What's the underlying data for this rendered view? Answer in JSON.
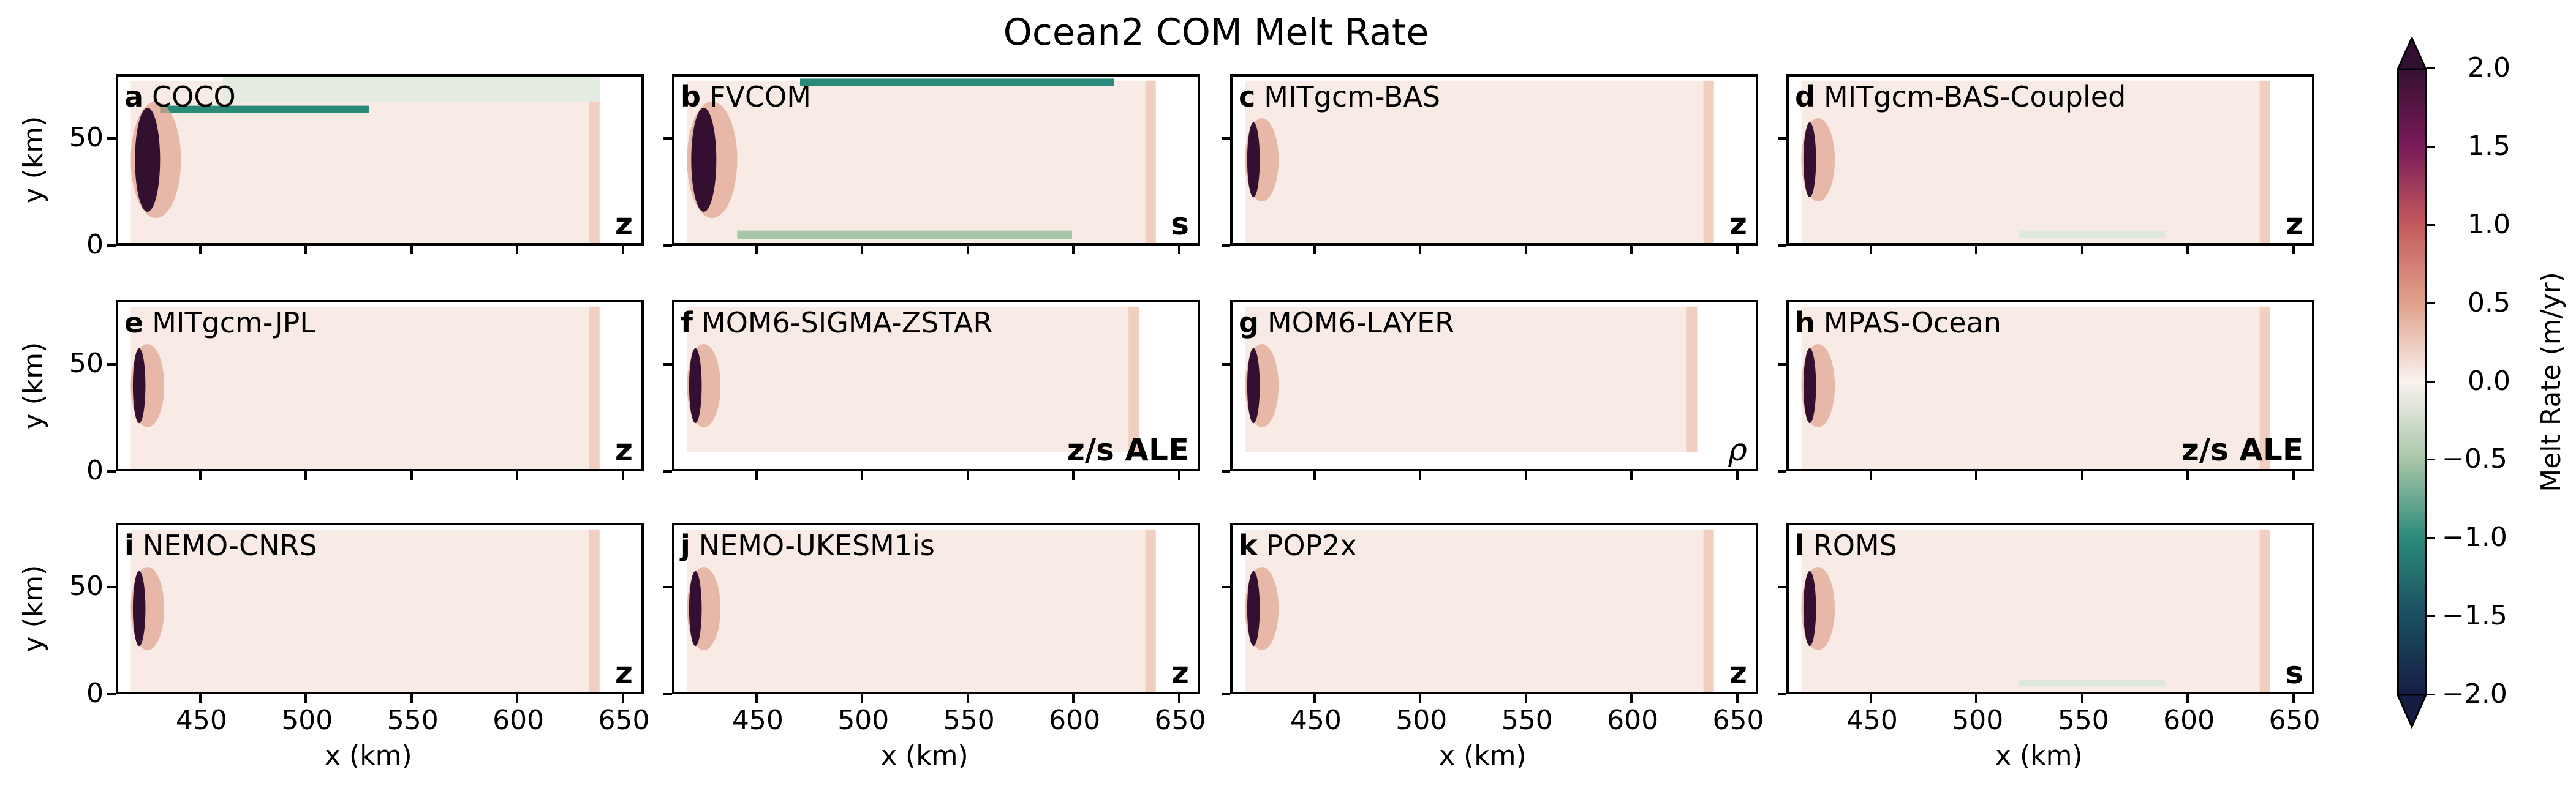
{
  "chart_data": {
    "type": "heatmap",
    "title": "Ocean2 COM Melt Rate",
    "xlabel": "x (km)",
    "ylabel": "y (km)",
    "xlim": [
      410,
      660
    ],
    "ylim": [
      0,
      80
    ],
    "xticks": [
      "450",
      "500",
      "550",
      "600",
      "650"
    ],
    "yticks": [
      "0",
      "50"
    ],
    "panels": [
      {
        "letter": "a",
        "name": "COCO",
        "coord": "z"
      },
      {
        "letter": "b",
        "name": "FVCOM",
        "coord": "s"
      },
      {
        "letter": "c",
        "name": "MITgcm-BAS",
        "coord": "z"
      },
      {
        "letter": "d",
        "name": "MITgcm-BAS-Coupled",
        "coord": "z"
      },
      {
        "letter": "e",
        "name": "MITgcm-JPL",
        "coord": "z"
      },
      {
        "letter": "f",
        "name": "MOM6-SIGMA-ZSTAR",
        "coord": "z/s ALE"
      },
      {
        "letter": "g",
        "name": "MOM6-LAYER",
        "coord": "ρ"
      },
      {
        "letter": "h",
        "name": "MPAS-Ocean",
        "coord": "z/s ALE"
      },
      {
        "letter": "i",
        "name": "NEMO-CNRS",
        "coord": "z"
      },
      {
        "letter": "j",
        "name": "NEMO-UKESM1is",
        "coord": "z"
      },
      {
        "letter": "k",
        "name": "POP2x",
        "coord": "z"
      },
      {
        "letter": "l",
        "name": "ROMS",
        "coord": "s"
      }
    ],
    "colorbar": {
      "label": "Melt Rate (m/yr)",
      "range": [
        -2.0,
        2.0
      ],
      "extend": "both",
      "ticks": [
        "2.0",
        "1.5",
        "1.0",
        "0.5",
        "0.0",
        "−0.5",
        "−1.0",
        "−1.5",
        "−2.0"
      ],
      "colors": [
        "#341030",
        "#7a1b5a",
        "#c45a5d",
        "#e0a28c",
        "#f9f2ef",
        "#a8c6a8",
        "#2a8a7a",
        "#1b4e60",
        "#151d44"
      ]
    }
  }
}
